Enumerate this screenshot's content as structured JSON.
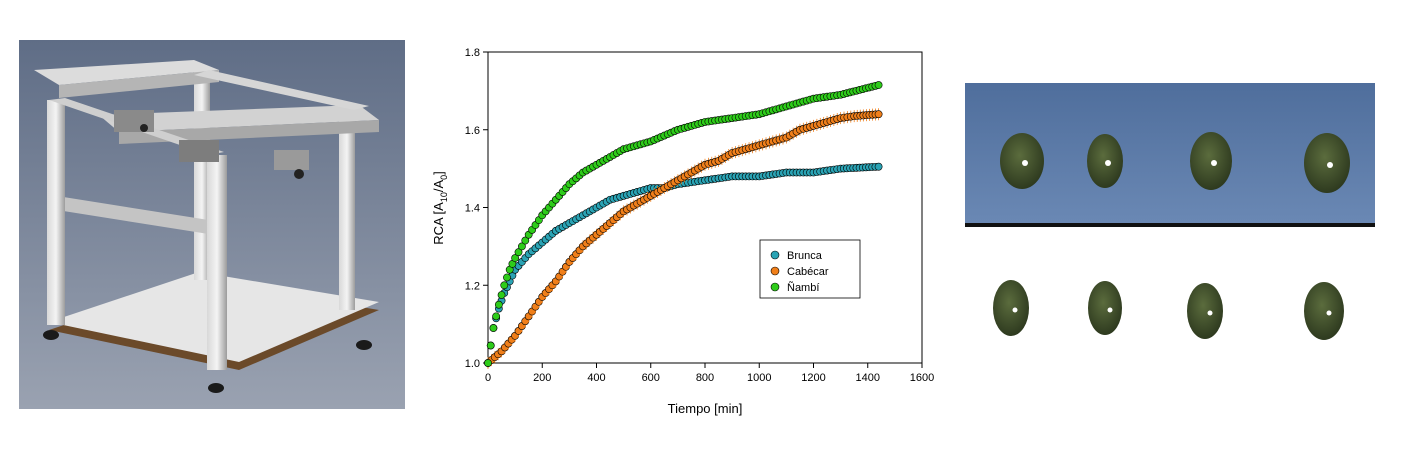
{
  "chart_data": {
    "type": "scatter",
    "title": "",
    "xlabel": "Tiempo [min]",
    "ylabel_parts": {
      "main": "RCA [A",
      "sub1": "10",
      "mid": "/A",
      "sub2": "0",
      "end": "]"
    },
    "xlim": [
      0,
      1600
    ],
    "ylim": [
      1.0,
      1.8
    ],
    "x_ticks": [
      "0",
      "200",
      "400",
      "600",
      "800",
      "1000",
      "1200",
      "1400",
      "1600"
    ],
    "y_ticks": [
      "1.0",
      "1.2",
      "1.4",
      "1.6",
      "1.8"
    ],
    "legend_position": "center-right",
    "grid": false,
    "series": [
      {
        "name": "Brunca",
        "color": "#2aa3b4",
        "x": [
          0,
          20,
          40,
          60,
          80,
          100,
          150,
          200,
          250,
          300,
          350,
          400,
          450,
          500,
          550,
          600,
          650,
          700,
          800,
          900,
          1000,
          1100,
          1200,
          1300,
          1440
        ],
        "y": [
          1.0,
          1.09,
          1.14,
          1.18,
          1.21,
          1.24,
          1.28,
          1.31,
          1.34,
          1.36,
          1.38,
          1.4,
          1.42,
          1.43,
          1.44,
          1.45,
          1.45,
          1.46,
          1.47,
          1.48,
          1.48,
          1.49,
          1.49,
          1.5,
          1.505
        ]
      },
      {
        "name": "Cabécar",
        "color": "#f07f1a",
        "x": [
          0,
          50,
          100,
          150,
          200,
          250,
          300,
          350,
          400,
          450,
          500,
          550,
          600,
          650,
          700,
          750,
          800,
          850,
          900,
          950,
          1000,
          1050,
          1100,
          1150,
          1200,
          1250,
          1300,
          1350,
          1440
        ],
        "y": [
          1.0,
          1.03,
          1.07,
          1.12,
          1.17,
          1.21,
          1.26,
          1.3,
          1.33,
          1.36,
          1.39,
          1.41,
          1.43,
          1.45,
          1.47,
          1.49,
          1.51,
          1.52,
          1.54,
          1.55,
          1.56,
          1.57,
          1.58,
          1.6,
          1.61,
          1.62,
          1.63,
          1.635,
          1.64
        ]
      },
      {
        "name": "Ñambí",
        "color": "#2ecc1a",
        "x": [
          0,
          20,
          40,
          60,
          80,
          100,
          150,
          200,
          250,
          300,
          350,
          400,
          450,
          500,
          550,
          600,
          700,
          800,
          900,
          1000,
          1100,
          1200,
          1300,
          1440
        ],
        "y": [
          1.0,
          1.09,
          1.15,
          1.2,
          1.24,
          1.27,
          1.33,
          1.38,
          1.42,
          1.46,
          1.49,
          1.51,
          1.53,
          1.55,
          1.56,
          1.57,
          1.6,
          1.62,
          1.63,
          1.64,
          1.66,
          1.68,
          1.69,
          1.715
        ]
      }
    ]
  },
  "figure_colors": {
    "beans": "#3a4a2a",
    "cloth": "#5b7aa6"
  }
}
